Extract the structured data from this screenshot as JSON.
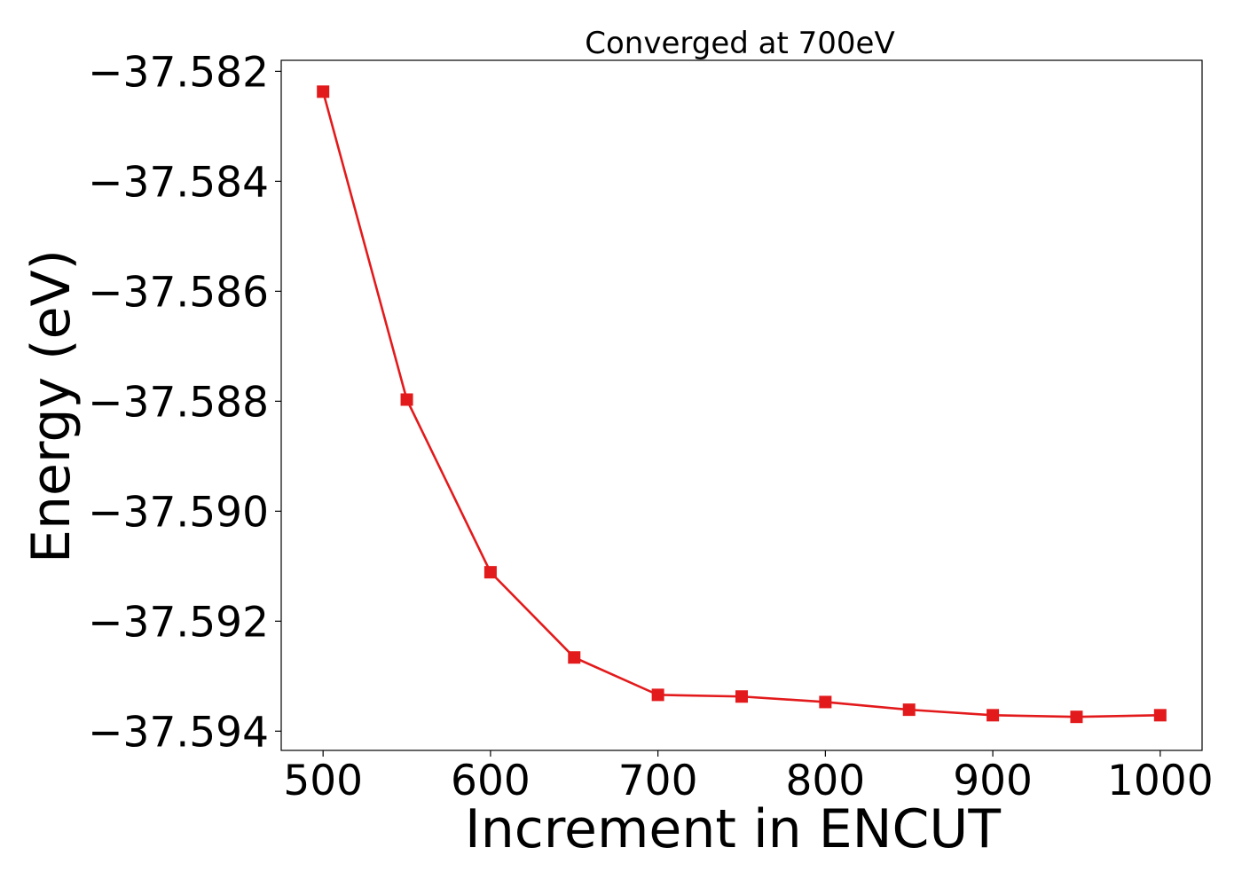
{
  "chart_data": {
    "type": "line",
    "title": "Converged at 700eV",
    "xlabel": "Increment in ENCUT",
    "ylabel": "Energy (eV)",
    "xlim": [
      475,
      1025
    ],
    "ylim": [
      -37.59435,
      -37.5818
    ],
    "x_ticks": [
      500,
      600,
      700,
      800,
      900,
      1000
    ],
    "x_tick_labels": [
      "500",
      "600",
      "700",
      "800",
      "900",
      "1000"
    ],
    "y_ticks": [
      -37.582,
      -37.584,
      -37.586,
      -37.588,
      -37.59,
      -37.592,
      -37.594
    ],
    "y_tick_labels": [
      "−37.582",
      "−37.584",
      "−37.586",
      "−37.588",
      "−37.590",
      "−37.592",
      "−37.594"
    ],
    "grid": false,
    "series": [
      {
        "color": "#e31a1c",
        "marker": "square",
        "x": [
          500,
          550,
          600,
          650,
          700,
          750,
          800,
          850,
          900,
          950,
          1000
        ],
        "y": [
          -37.58237,
          -37.58797,
          -37.59111,
          -37.59266,
          -37.59334,
          -37.59337,
          -37.59347,
          -37.59361,
          -37.59371,
          -37.59374,
          -37.59371
        ]
      }
    ]
  }
}
